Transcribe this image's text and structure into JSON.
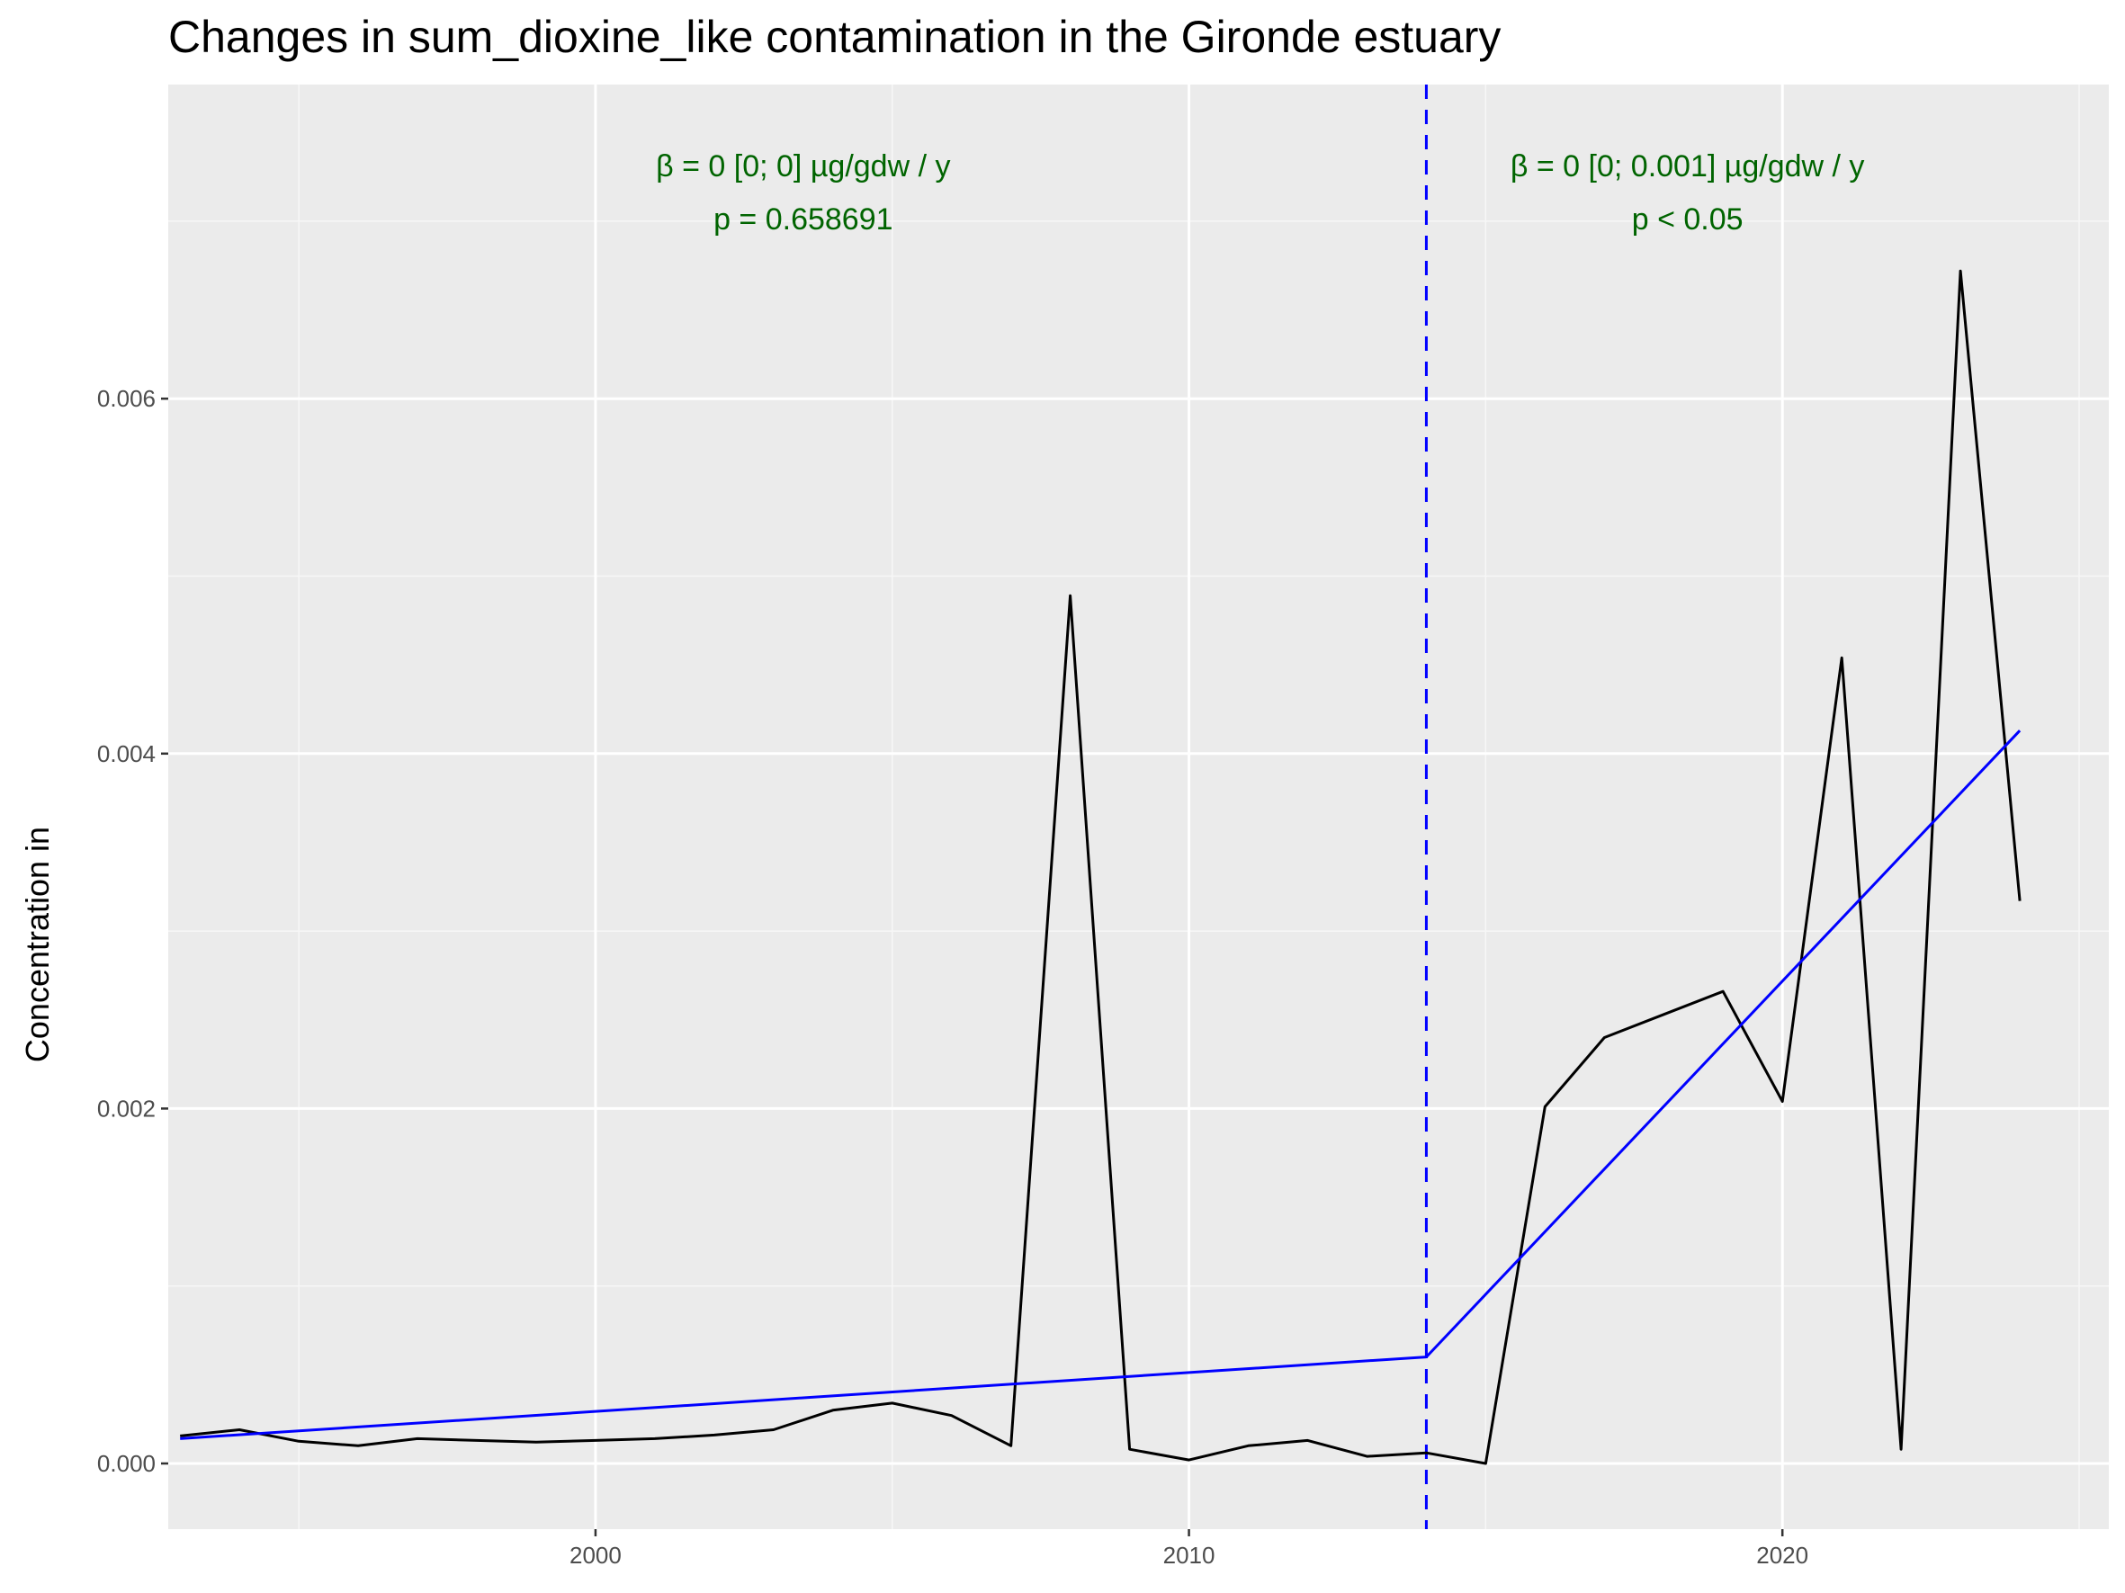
{
  "chart_data": {
    "type": "line",
    "title": "Changes in sum_dioxine_like contamination in the Gironde estuary",
    "xlabel": "",
    "ylabel": "Concentration in",
    "xlim": [
      1992.8,
      2025.5
    ],
    "ylim": [
      -0.00037,
      0.00777
    ],
    "x_ticks": [
      2000,
      2010,
      2020
    ],
    "x_ticks_minor": [
      1995,
      2005,
      2015,
      2025
    ],
    "y_ticks": [
      0.0,
      0.002,
      0.004,
      0.006
    ],
    "y_ticks_minor": [
      0.001,
      0.003,
      0.005,
      0.007
    ],
    "y_tick_labels": [
      "0.000",
      "0.002",
      "0.004",
      "0.006"
    ],
    "x_tick_labels": [
      "2000",
      "2010",
      "2020"
    ],
    "grid": true,
    "series": [
      {
        "color": "#000000",
        "x": [
          1993,
          1994,
          1995,
          1996,
          1997,
          1998,
          1999,
          2000,
          2001,
          2002,
          2003,
          2004,
          2005,
          2006,
          2007,
          2008,
          2009,
          2010,
          2011,
          2012,
          2013,
          2014,
          2015,
          2016,
          2017,
          2018,
          2019,
          2020,
          2021,
          2022,
          2023,
          2024
        ],
        "y": [
          0.000155,
          0.00019,
          0.000125,
          0.0001,
          0.00014,
          0.00013,
          0.00012,
          0.00013,
          0.00014,
          0.00016,
          0.00019,
          0.0003,
          0.00034,
          0.00027,
          0.0001,
          0.00489,
          8e-05,
          2e-05,
          0.0001,
          0.00013,
          4e-05,
          6e-05,
          0.0,
          0.00201,
          0.0024,
          0.00253,
          0.00266,
          0.00204,
          0.00454,
          8e-05,
          0.00672,
          0.00317
        ]
      },
      {
        "color": "#0000ff",
        "x": [
          1993,
          2014
        ],
        "y": [
          0.00014,
          0.0006
        ]
      },
      {
        "color": "#0000ff",
        "x": [
          2014,
          2024
        ],
        "y": [
          0.0006,
          0.00413
        ]
      }
    ],
    "breakpoint": {
      "x": 2014,
      "color": "#0000ff",
      "style": "dashed"
    },
    "annotations": [
      {
        "lines": [
          "β = 0 [0; 0] µg/gdw / y",
          "p = 0.658691"
        ],
        "x": 2003.5,
        "color": "#006400"
      },
      {
        "lines": [
          "β = 0 [0; 0.001] µg/gdw / y",
          "p < 0.05"
        ],
        "x": 2018.4,
        "color": "#006400"
      }
    ],
    "colors": {
      "panel": "#ebebeb",
      "grid_major": "#ffffff",
      "grid_minor": "#f7f7f7"
    }
  }
}
